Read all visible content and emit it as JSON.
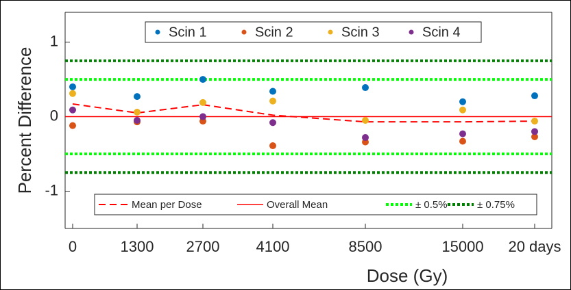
{
  "chart_data": {
    "type": "scatter",
    "xlabel": "Dose (Gy)",
    "ylabel": "Percent Difference",
    "categories": [
      "0",
      "1300",
      "2700",
      "4100",
      "8500",
      "15000",
      "20 days"
    ],
    "ylim": [
      -1.5,
      1.4
    ],
    "yticks": [
      -1,
      0,
      1
    ],
    "series": [
      {
        "name": "Scin 1",
        "color": "#0072bd",
        "values": [
          0.4,
          0.27,
          0.5,
          0.34,
          0.39,
          0.2,
          0.28
        ]
      },
      {
        "name": "Scin 2",
        "color": "#d95319",
        "values": [
          -0.12,
          -0.07,
          -0.06,
          -0.39,
          -0.34,
          -0.33,
          -0.27
        ]
      },
      {
        "name": "Scin 3",
        "color": "#edb120",
        "values": [
          0.31,
          0.06,
          0.19,
          0.21,
          -0.05,
          0.09,
          -0.06
        ]
      },
      {
        "name": "Scin 4",
        "color": "#7e2f8e",
        "values": [
          0.09,
          -0.05,
          0.0,
          -0.08,
          -0.28,
          -0.23,
          -0.2
        ]
      }
    ],
    "mean_line": {
      "name": "Mean per Dose",
      "color": "#ff0000",
      "values": [
        0.17,
        0.05,
        0.16,
        0.02,
        -0.07,
        -0.07,
        -0.06
      ]
    },
    "reference_lines": [
      {
        "name": "Overall Mean",
        "color": "#ff0000",
        "style": "solid",
        "values": [
          0
        ]
      },
      {
        "name": "± 0.5%",
        "color": "#00ff00",
        "style": "dotted",
        "values": [
          0.5,
          -0.5
        ]
      },
      {
        "name": "± 0.75%",
        "color": "#008000",
        "style": "dotted",
        "values": [
          0.75,
          -0.75
        ]
      }
    ]
  }
}
